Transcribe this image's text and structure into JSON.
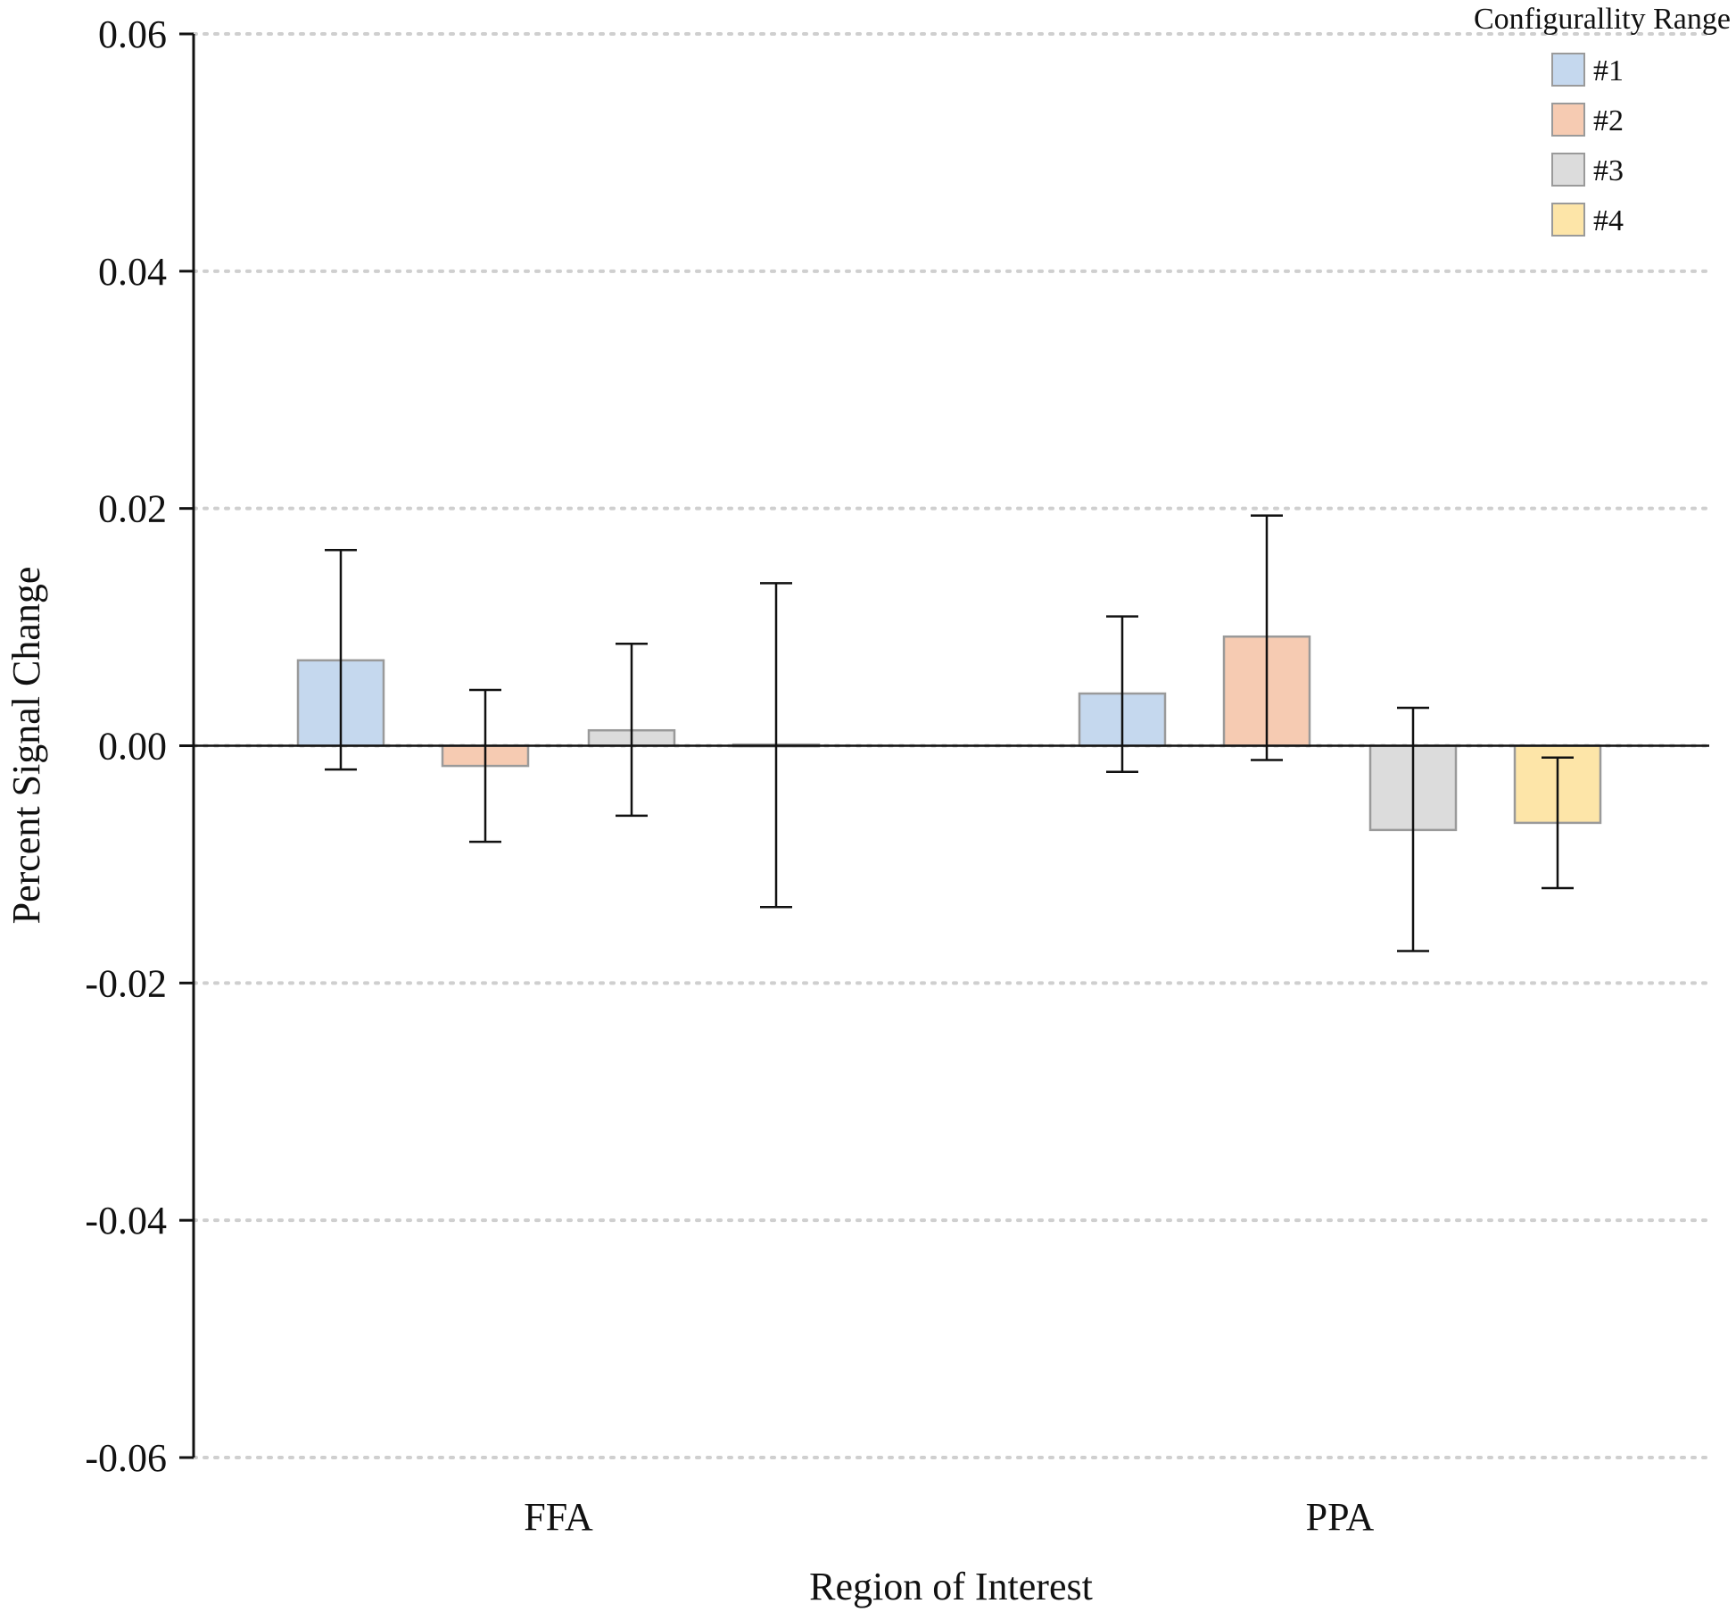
{
  "chart_data": {
    "type": "bar",
    "title": "",
    "xlabel": "Region of Interest",
    "ylabel": "Percent Signal Change",
    "ylim": [
      -0.06,
      0.06
    ],
    "yticks": [
      0.06,
      0.04,
      0.02,
      0.0,
      -0.02,
      -0.04,
      -0.06
    ],
    "ytick_labels": [
      "0.06",
      "0.04",
      "0.02",
      "0.00",
      "-0.02",
      "-0.04",
      "-0.06"
    ],
    "grid": "horizontal dotted",
    "categories": [
      "FFA",
      "PPA"
    ],
    "legend": {
      "title": "Configurallity Range",
      "position": "top-right"
    },
    "series": [
      {
        "name": "#1",
        "color": "#c5d8ee",
        "values": [
          0.0072,
          0.0044
        ],
        "err_low": [
          -0.002,
          -0.0022
        ],
        "err_high": [
          0.0165,
          0.0109
        ]
      },
      {
        "name": "#2",
        "color": "#f6cbb2",
        "values": [
          -0.0017,
          0.0092
        ],
        "err_low": [
          -0.0081,
          -0.0012
        ],
        "err_high": [
          0.0047,
          0.0194
        ]
      },
      {
        "name": "#3",
        "color": "#dcdcdc",
        "values": [
          0.0013,
          -0.0071
        ],
        "err_low": [
          -0.0059,
          -0.0173
        ],
        "err_high": [
          0.0086,
          0.0032
        ]
      },
      {
        "name": "#4",
        "color": "#fde5a8",
        "values": [
          0.0001,
          -0.0065
        ],
        "err_low": [
          -0.0136,
          -0.012
        ],
        "err_high": [
          0.0137,
          -0.001
        ]
      }
    ]
  }
}
